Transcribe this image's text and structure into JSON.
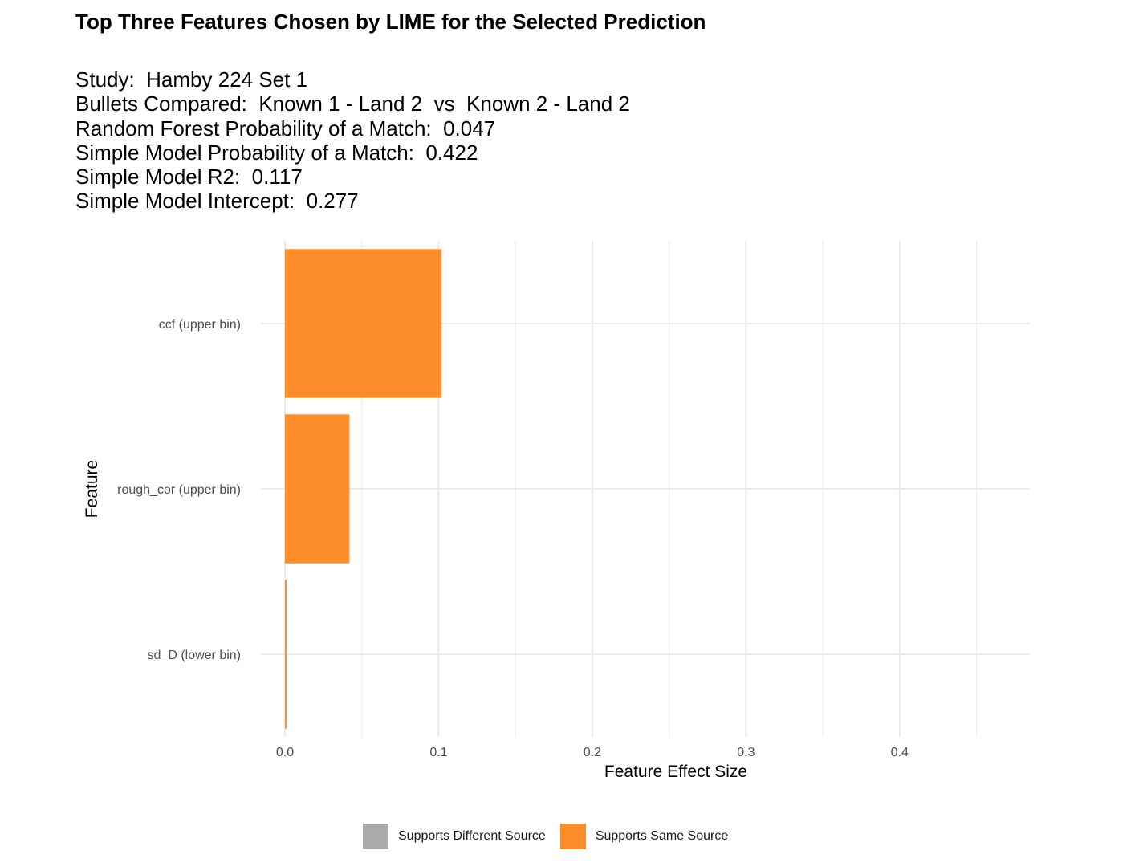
{
  "chart_data": {
    "type": "bar",
    "orientation": "horizontal",
    "title": "Top Three Features Chosen by LIME for the Selected Prediction",
    "subtitle_lines": [
      "Study:  Hamby 224 Set 1",
      "Bullets Compared:  Known 1 - Land 2  vs  Known 2 - Land 2",
      "Random Forest Probability of a Match:  0.047",
      "Simple Model Probability of a Match:  0.422",
      "Simple Model R2:  0.117",
      "Simple Model Intercept:  0.277"
    ],
    "categories": [
      "ccf (upper bin)",
      "rough_cor (upper bin)",
      "sd_D (lower bin)"
    ],
    "values": [
      0.102,
      0.042,
      0.001
    ],
    "bar_groups": [
      "Supports Same Source",
      "Supports Same Source",
      "Supports Same Source"
    ],
    "xlabel": "Feature Effect Size",
    "ylabel": "Feature",
    "xlim": [
      0.0,
      0.485
    ],
    "xticks": [
      0.0,
      0.1,
      0.2,
      0.3,
      0.4
    ],
    "xtick_labels": [
      "0.0",
      "0.1",
      "0.2",
      "0.3",
      "0.4"
    ],
    "grid": true,
    "legend": {
      "placement": "bottom",
      "entries": [
        {
          "label": "Supports Different Source",
          "color": "#aaaaaa"
        },
        {
          "label": "Supports Same Source",
          "color": "#fc8d2a"
        }
      ]
    },
    "colors": {
      "Supports Different Source": "#aaaaaa",
      "Supports Same Source": "#fc8d2a"
    }
  }
}
